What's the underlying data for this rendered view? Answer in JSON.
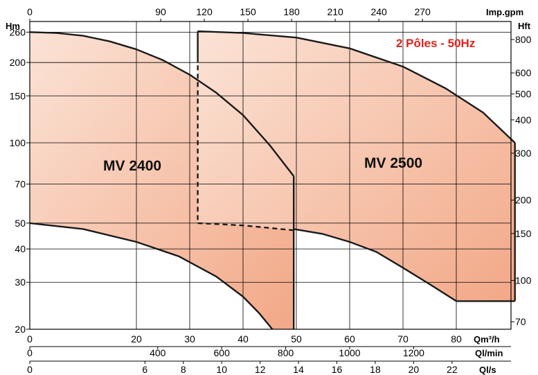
{
  "chart_data": {
    "type": "area",
    "badge": {
      "text": "2 Pôles - 50Hz",
      "color": "#e0221b"
    },
    "fill_colors": {
      "light": "#fbe3d6",
      "dark": "#f2a887"
    },
    "axes": {
      "left": {
        "unit": "Hm",
        "scale": "log",
        "range": [
          20,
          285
        ],
        "ticks": [
          {
            "v": 20,
            "label": "20"
          },
          {
            "v": 30,
            "label": "30"
          },
          {
            "v": 40,
            "label": "40"
          },
          {
            "v": 50,
            "label": "50"
          },
          {
            "v": 70,
            "label": "70"
          },
          {
            "v": 100,
            "label": "100"
          },
          {
            "v": 150,
            "label": "150"
          },
          {
            "v": 200,
            "label": "200"
          },
          {
            "v": 260,
            "label": "260"
          }
        ]
      },
      "right": {
        "unit": "Hft",
        "scale": "log",
        "ticks": [
          {
            "v": 70,
            "label": "70"
          },
          {
            "v": 100,
            "label": "100"
          },
          {
            "v": 150,
            "label": "150"
          },
          {
            "v": 200,
            "label": "200"
          },
          {
            "v": 300,
            "label": "300"
          },
          {
            "v": 400,
            "label": "400"
          },
          {
            "v": 500,
            "label": "500"
          },
          {
            "v": 600,
            "label": "600"
          },
          {
            "v": 800,
            "label": "800"
          }
        ]
      },
      "bottom_m3h": {
        "unit": "Qm³/h",
        "range": [
          0,
          100
        ],
        "ticks": [
          {
            "v": 0,
            "label": "0"
          },
          {
            "v": 20,
            "label": "20"
          },
          {
            "v": 30,
            "label": "30"
          },
          {
            "v": 40,
            "label": "40"
          },
          {
            "v": 50,
            "label": "50"
          },
          {
            "v": 60,
            "label": "60"
          },
          {
            "v": 70,
            "label": "70"
          },
          {
            "v": 80,
            "label": "80"
          }
        ]
      },
      "bottom_lmin": {
        "unit": "Ql/min",
        "ticks": [
          {
            "v": 0,
            "label": "0"
          },
          {
            "v": 400,
            "label": "400"
          },
          {
            "v": 600,
            "label": "600"
          },
          {
            "v": 800,
            "label": "800"
          },
          {
            "v": 1000,
            "label": "1000"
          },
          {
            "v": 1200,
            "label": "1200"
          }
        ]
      },
      "bottom_ls": {
        "unit": "Ql/s",
        "ticks": [
          {
            "v": 0,
            "label": "0"
          },
          {
            "v": 6,
            "label": "6"
          },
          {
            "v": 8,
            "label": "8"
          },
          {
            "v": 10,
            "label": "10"
          },
          {
            "v": 12,
            "label": "12"
          },
          {
            "v": 14,
            "label": "14"
          },
          {
            "v": 16,
            "label": "16"
          },
          {
            "v": 18,
            "label": "18"
          },
          {
            "v": 20,
            "label": "20"
          },
          {
            "v": 22,
            "label": "22"
          }
        ]
      },
      "top_gpm": {
        "unit": "Imp.gpm",
        "ticks": [
          {
            "v": 0,
            "label": "0"
          },
          {
            "v": 90,
            "label": "90"
          },
          {
            "v": 120,
            "label": "120"
          },
          {
            "v": 150,
            "label": "150"
          },
          {
            "v": 180,
            "label": "180"
          },
          {
            "v": 210,
            "label": "210"
          },
          {
            "v": 240,
            "label": "240"
          },
          {
            "v": 270,
            "label": "270"
          }
        ]
      }
    },
    "series": [
      {
        "name": "MV 2400",
        "max_head_curve": [
          [
            0,
            260
          ],
          [
            5,
            258
          ],
          [
            10,
            252
          ],
          [
            15,
            240
          ],
          [
            20,
            224
          ],
          [
            25,
            204
          ],
          [
            30,
            180
          ],
          [
            35,
            154
          ],
          [
            40,
            127
          ],
          [
            45,
            98
          ],
          [
            49.5,
            75
          ]
        ],
        "min_head_curve": [
          [
            0,
            50
          ],
          [
            10,
            47.5
          ],
          [
            20,
            42.5
          ],
          [
            28,
            37.5
          ],
          [
            35,
            31.5
          ],
          [
            40,
            26.5
          ],
          [
            43,
            23
          ],
          [
            45.5,
            20
          ]
        ],
        "right_limit_q": 49.5,
        "right_limit_head_range": [
          20,
          75
        ]
      },
      {
        "name": "MV 2500",
        "max_head_curve": [
          [
            31.5,
            262
          ],
          [
            40,
            258
          ],
          [
            50,
            248
          ],
          [
            60,
            226
          ],
          [
            70,
            193
          ],
          [
            78,
            160
          ],
          [
            85,
            130
          ],
          [
            91,
            100
          ]
        ],
        "min_head_curve": [
          [
            49.5,
            47.5
          ],
          [
            55,
            45.5
          ],
          [
            60,
            42.5
          ],
          [
            65,
            39
          ],
          [
            70,
            34
          ],
          [
            75,
            29.5
          ],
          [
            80,
            25.5
          ]
        ],
        "left_limit_q": 31.5,
        "left_limit_head_range": [
          200,
          262
        ],
        "min_q_flat_segment": [
          [
            80,
            25.5
          ],
          [
            91,
            25.5
          ]
        ]
      }
    ],
    "dashed_lines": [
      {
        "points": [
          [
            31.5,
            195
          ],
          [
            31.5,
            50
          ]
        ]
      },
      {
        "points": [
          [
            31.5,
            50
          ],
          [
            40,
            49
          ],
          [
            49.5,
            47
          ]
        ]
      }
    ],
    "grid": true
  }
}
